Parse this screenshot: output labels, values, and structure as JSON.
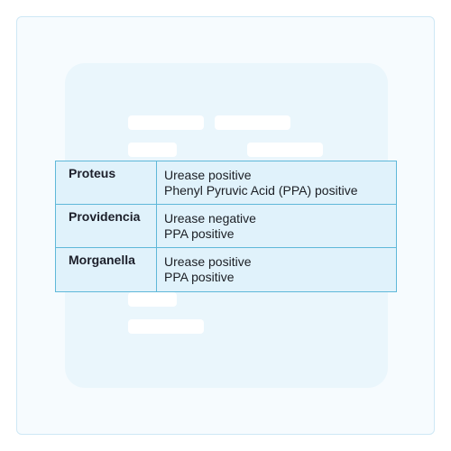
{
  "table": {
    "rows": [
      {
        "term": "Proteus",
        "lines": [
          "Urease positive",
          "Phenyl Pyruvic Acid (PPA) positive"
        ]
      },
      {
        "term": "Providencia",
        "lines": [
          "Urease negative",
          "PPA positive"
        ]
      },
      {
        "term": "Morganella",
        "lines": [
          "Urease positive",
          "PPA positive"
        ]
      }
    ]
  },
  "colors": {
    "frame_border": "#cfe8f5",
    "table_fill": "#e0f2fb",
    "table_border": "#5fb8d9"
  }
}
